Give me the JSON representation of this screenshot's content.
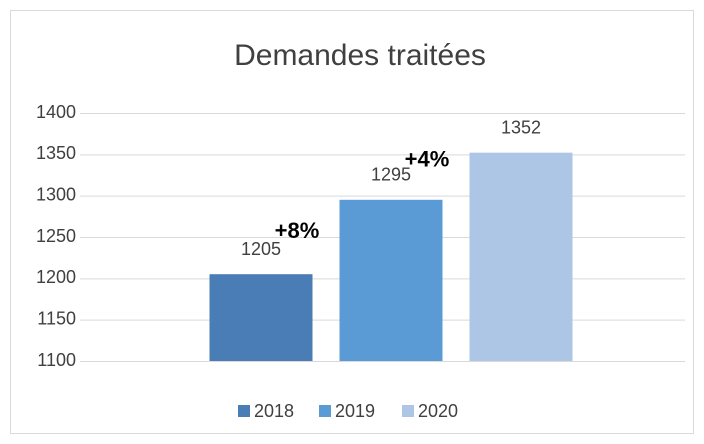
{
  "chart_data": {
    "type": "bar",
    "title": "Demandes traitées",
    "categories": [
      null
    ],
    "series": [
      {
        "name": "2018",
        "color": "#4a7db5",
        "values": [
          1205
        ]
      },
      {
        "name": "2019",
        "color": "#5b9bd5",
        "values": [
          1295
        ]
      },
      {
        "name": "2020",
        "color": "#adc6e5",
        "values": [
          1352
        ]
      }
    ],
    "annotations": [
      "+8%",
      "+4%"
    ],
    "ylim": [
      1100,
      1400
    ],
    "yticks": [
      1100,
      1150,
      1200,
      1250,
      1300,
      1350,
      1400
    ],
    "grid": true,
    "legend": "bottom"
  }
}
